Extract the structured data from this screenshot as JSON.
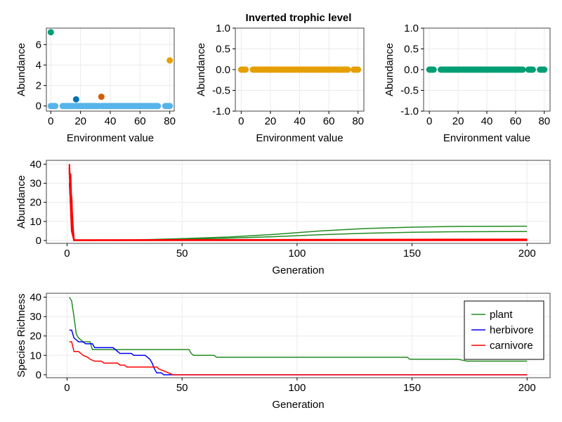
{
  "figure_title": "Inverted trophic level",
  "colors": {
    "green_dot": "#009e73",
    "dark_blue_dot": "#0072b2",
    "orange_dot": "#d55e00",
    "sky_blue_dot": "#56b4e9",
    "gold_dot": "#e69f00",
    "plant": "#228b22",
    "herbivore": "#0000ff",
    "carnivore": "#ff0000",
    "grid": "#ebebeb"
  },
  "chart_data": [
    {
      "type": "scatter",
      "id": "p1",
      "title": "",
      "xlabel": "Environment value",
      "ylabel": "Abundance",
      "xlim": [
        -3,
        83
      ],
      "ylim": [
        -0.5,
        7.6
      ],
      "xticks": [
        0,
        20,
        40,
        60,
        80
      ],
      "yticks": [
        0,
        2,
        4,
        6
      ],
      "series": [
        {
          "color": "#56b4e9",
          "points": [
            [
              0,
              0
            ],
            [
              1,
              0
            ],
            [
              2,
              0
            ],
            [
              3,
              0
            ],
            [
              8,
              0
            ],
            [
              9,
              0
            ],
            [
              10,
              0
            ],
            [
              11,
              0
            ],
            [
              12,
              0
            ],
            [
              13,
              0
            ],
            [
              14,
              0
            ],
            [
              15,
              0
            ],
            [
              17,
              0
            ],
            [
              18,
              0
            ],
            [
              19,
              0
            ],
            [
              20,
              0
            ],
            [
              21,
              0
            ],
            [
              22,
              0
            ],
            [
              23,
              0
            ],
            [
              24,
              0
            ],
            [
              25,
              0
            ],
            [
              26,
              0
            ],
            [
              27,
              0
            ],
            [
              28,
              0
            ],
            [
              29,
              0
            ],
            [
              30,
              0
            ],
            [
              31,
              0
            ],
            [
              32,
              0
            ],
            [
              34,
              0
            ],
            [
              35,
              0
            ],
            [
              36,
              0
            ],
            [
              37,
              0
            ],
            [
              38,
              0
            ],
            [
              39,
              0
            ],
            [
              40,
              0
            ],
            [
              41,
              0
            ],
            [
              42,
              0
            ],
            [
              43,
              0
            ],
            [
              44,
              0
            ],
            [
              45,
              0
            ],
            [
              46,
              0
            ],
            [
              47,
              0
            ],
            [
              48,
              0
            ],
            [
              49,
              0
            ],
            [
              50,
              0
            ],
            [
              51,
              0
            ],
            [
              52,
              0
            ],
            [
              53,
              0
            ],
            [
              54,
              0
            ],
            [
              55,
              0
            ],
            [
              56,
              0
            ],
            [
              57,
              0
            ],
            [
              58,
              0
            ],
            [
              59,
              0
            ],
            [
              60,
              0
            ],
            [
              61,
              0
            ],
            [
              62,
              0
            ],
            [
              63,
              0
            ],
            [
              64,
              0
            ],
            [
              65,
              0
            ],
            [
              66,
              0
            ],
            [
              67,
              0
            ],
            [
              68,
              0
            ],
            [
              69,
              0
            ],
            [
              70,
              0
            ],
            [
              71,
              0
            ],
            [
              72,
              0
            ],
            [
              77,
              0
            ],
            [
              78,
              0
            ],
            [
              79,
              0
            ],
            [
              80,
              0
            ]
          ]
        },
        {
          "color": "#009e73",
          "points": [
            [
              0,
              7.2
            ]
          ]
        },
        {
          "color": "#0072b2",
          "points": [
            [
              17,
              0.65
            ]
          ]
        },
        {
          "color": "#d55e00",
          "points": [
            [
              34,
              0.9
            ]
          ]
        },
        {
          "color": "#e69f00",
          "points": [
            [
              80,
              4.45
            ]
          ]
        }
      ]
    },
    {
      "type": "scatter",
      "id": "p2",
      "title": "Inverted trophic level",
      "xlabel": "Environment value",
      "ylabel": "Abundance",
      "xlim": [
        -4,
        84
      ],
      "ylim": [
        -1.0,
        1.0
      ],
      "xticks": [
        0,
        20,
        40,
        60,
        80
      ],
      "yticks": [
        -1.0,
        -0.5,
        0.0,
        0.5,
        1.0
      ],
      "series": [
        {
          "color": "#e69f00",
          "x_range": [
            [
              0,
              3
            ],
            [
              8,
              73
            ],
            [
              77,
              80
            ]
          ],
          "y": 0
        }
      ]
    },
    {
      "type": "scatter",
      "id": "p3",
      "title": "",
      "xlabel": "Environment value",
      "ylabel": "Abundance",
      "xlim": [
        -4,
        84
      ],
      "ylim": [
        -1.0,
        1.0
      ],
      "xticks": [
        0,
        20,
        40,
        60,
        80
      ],
      "yticks": [
        -1.0,
        -0.5,
        0.0,
        0.5,
        1.0
      ],
      "series": [
        {
          "color": "#009e73",
          "x_range": [
            [
              0,
              3
            ],
            [
              8,
              65
            ],
            [
              69,
              72
            ],
            [
              77,
              80
            ]
          ],
          "y": 0
        }
      ]
    },
    {
      "type": "line",
      "id": "p4",
      "title": "",
      "xlabel": "Generation",
      "ylabel": "Abundance",
      "xlim": [
        -9,
        210
      ],
      "ylim": [
        -1.5,
        42
      ],
      "xticks": [
        0,
        50,
        100,
        150,
        200
      ],
      "yticks": [
        0,
        10,
        20,
        30,
        40
      ],
      "series": [
        {
          "color": "#228b22",
          "points": [
            [
              1,
              40
            ],
            [
              1.5,
              30
            ],
            [
              2,
              12
            ],
            [
              3,
              0.3
            ],
            [
              10,
              0.05
            ],
            [
              30,
              0.3
            ],
            [
              50,
              1
            ],
            [
              70,
              1.8
            ],
            [
              90,
              3.2
            ],
            [
              110,
              5
            ],
            [
              130,
              6.3
            ],
            [
              150,
              7
            ],
            [
              170,
              7.4
            ],
            [
              200,
              7.5
            ]
          ]
        },
        {
          "color": "#228b22",
          "points": [
            [
              1,
              38
            ],
            [
              1.5,
              25
            ],
            [
              2,
              10
            ],
            [
              3,
              0.2
            ],
            [
              10,
              0.03
            ],
            [
              30,
              0.2
            ],
            [
              50,
              0.7
            ],
            [
              70,
              1.2
            ],
            [
              90,
              2
            ],
            [
              110,
              3
            ],
            [
              130,
              3.8
            ],
            [
              150,
              4.3
            ],
            [
              170,
              4.6
            ],
            [
              200,
              4.7
            ]
          ]
        },
        {
          "color": "#0000ff",
          "points": [
            [
              1,
              30
            ],
            [
              1.5,
              18
            ],
            [
              2,
              6
            ],
            [
              3,
              0.1
            ],
            [
              200,
              0.1
            ]
          ]
        },
        {
          "color": "#ff0000",
          "points": [
            [
              1,
              40
            ],
            [
              1.2,
              33
            ],
            [
              1.5,
              35
            ],
            [
              1.8,
              24
            ],
            [
              2,
              22
            ],
            [
              2.2,
              15
            ],
            [
              2.5,
              8
            ],
            [
              3,
              0.2
            ],
            [
              50,
              0.3
            ],
            [
              100,
              0.4
            ],
            [
              150,
              0.5
            ],
            [
              200,
              0.6
            ]
          ]
        },
        {
          "color": "#ff0000",
          "points": [
            [
              1,
              36
            ],
            [
              1.5,
              28
            ],
            [
              2,
              12
            ],
            [
              3,
              0.15
            ],
            [
              100,
              0.2
            ],
            [
              200,
              0.25
            ]
          ]
        },
        {
          "color": "#ff0000",
          "points": [
            [
              1,
              38
            ],
            [
              1.5,
              20
            ],
            [
              2,
              5
            ],
            [
              3,
              0.1
            ],
            [
              200,
              0.1
            ]
          ]
        }
      ]
    },
    {
      "type": "line",
      "id": "p5",
      "title": "",
      "xlabel": "Generation",
      "ylabel": "Species Richness",
      "xlim": [
        -9,
        210
      ],
      "ylim": [
        -1.5,
        42
      ],
      "xticks": [
        0,
        50,
        100,
        150,
        200
      ],
      "yticks": [
        0,
        10,
        20,
        30,
        40
      ],
      "legend_position": "top-right",
      "series": [
        {
          "name": "plant",
          "color": "#228b22",
          "points": [
            [
              1,
              40
            ],
            [
              2,
              38
            ],
            [
              3,
              30
            ],
            [
              4,
              21
            ],
            [
              5,
              19
            ],
            [
              6,
              18
            ],
            [
              7,
              17
            ],
            [
              10,
              17
            ],
            [
              11,
              13
            ],
            [
              53,
              13
            ],
            [
              54,
              11
            ],
            [
              55,
              10
            ],
            [
              64,
              10
            ],
            [
              65,
              9
            ],
            [
              148,
              9
            ],
            [
              149,
              8
            ],
            [
              170,
              8
            ],
            [
              174,
              7
            ],
            [
              200,
              7
            ]
          ]
        },
        {
          "name": "herbivore",
          "color": "#0000ff",
          "points": [
            [
              1,
              23
            ],
            [
              2,
              23
            ],
            [
              3,
              19
            ],
            [
              4,
              18
            ],
            [
              5,
              17
            ],
            [
              7,
              17
            ],
            [
              8,
              16
            ],
            [
              11,
              16
            ],
            [
              12,
              14
            ],
            [
              20,
              14
            ],
            [
              21,
              13
            ],
            [
              22,
              12
            ],
            [
              23,
              11
            ],
            [
              28,
              11
            ],
            [
              29,
              10
            ],
            [
              34,
              10
            ],
            [
              35,
              9
            ],
            [
              36,
              8
            ],
            [
              37,
              6
            ],
            [
              38,
              3
            ],
            [
              39,
              1
            ],
            [
              41,
              1
            ],
            [
              42,
              0
            ],
            [
              200,
              0
            ]
          ]
        },
        {
          "name": "carnivore",
          "color": "#ff0000",
          "points": [
            [
              1,
              17
            ],
            [
              2,
              17
            ],
            [
              3,
              12
            ],
            [
              5,
              12
            ],
            [
              6,
              11
            ],
            [
              7,
              10
            ],
            [
              9,
              9
            ],
            [
              10,
              8
            ],
            [
              12,
              7
            ],
            [
              15,
              7
            ],
            [
              16,
              6
            ],
            [
              22,
              6
            ],
            [
              23,
              5
            ],
            [
              25,
              5
            ],
            [
              26,
              4
            ],
            [
              39,
              4
            ],
            [
              40,
              3
            ],
            [
              42,
              2
            ],
            [
              44,
              1
            ],
            [
              46,
              0
            ],
            [
              200,
              0
            ]
          ]
        }
      ]
    }
  ]
}
